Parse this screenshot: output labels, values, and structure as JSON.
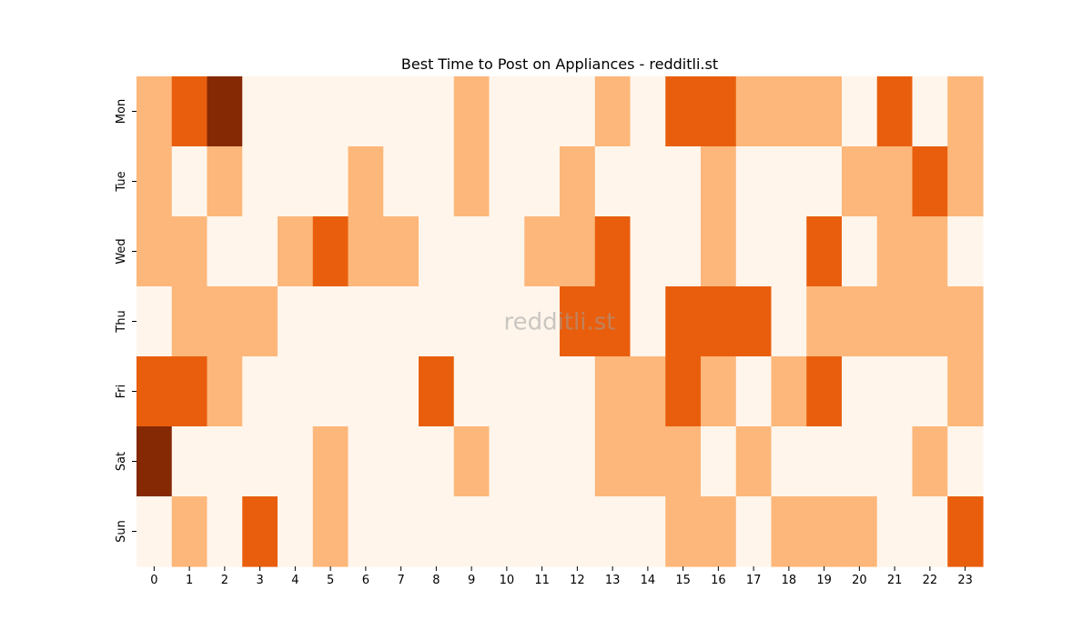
{
  "chart_data": {
    "type": "heatmap",
    "title": "Best Time to Post on Appliances - redditli.st",
    "xlabel": "",
    "ylabel": "",
    "x_categories": [
      "0",
      "1",
      "2",
      "3",
      "4",
      "5",
      "6",
      "7",
      "8",
      "9",
      "10",
      "11",
      "12",
      "13",
      "14",
      "15",
      "16",
      "17",
      "18",
      "19",
      "20",
      "21",
      "22",
      "23"
    ],
    "y_categories": [
      "Mon",
      "Tue",
      "Wed",
      "Thu",
      "Fri",
      "Sat",
      "Sun"
    ],
    "values": [
      [
        1,
        2,
        3,
        0,
        0,
        0,
        0,
        0,
        0,
        1,
        0,
        0,
        0,
        1,
        0,
        2,
        2,
        1,
        1,
        1,
        0,
        2,
        0,
        1
      ],
      [
        1,
        0,
        1,
        0,
        0,
        0,
        1,
        0,
        0,
        1,
        0,
        0,
        1,
        0,
        0,
        0,
        1,
        0,
        0,
        0,
        1,
        1,
        2,
        1
      ],
      [
        1,
        1,
        0,
        0,
        1,
        2,
        1,
        1,
        0,
        0,
        0,
        1,
        1,
        2,
        0,
        0,
        1,
        0,
        0,
        2,
        0,
        1,
        1,
        0
      ],
      [
        0,
        1,
        1,
        1,
        0,
        0,
        0,
        0,
        0,
        0,
        0,
        0,
        2,
        2,
        0,
        2,
        2,
        2,
        0,
        1,
        1,
        1,
        1,
        1
      ],
      [
        2,
        2,
        1,
        0,
        0,
        0,
        0,
        0,
        2,
        0,
        0,
        0,
        0,
        1,
        1,
        2,
        1,
        0,
        1,
        2,
        0,
        0,
        0,
        1
      ],
      [
        3,
        0,
        0,
        0,
        0,
        1,
        0,
        0,
        0,
        1,
        0,
        0,
        0,
        1,
        1,
        1,
        0,
        1,
        0,
        0,
        0,
        0,
        1,
        0
      ],
      [
        0,
        1,
        0,
        2,
        0,
        1,
        0,
        0,
        0,
        0,
        0,
        0,
        0,
        0,
        0,
        1,
        1,
        0,
        1,
        1,
        1,
        0,
        0,
        2
      ]
    ],
    "color_scale": [
      "#fff5eb",
      "#fdb77a",
      "#e95e0d",
      "#842904"
    ],
    "colorbar": false,
    "grid": false,
    "watermark": "redditli.st"
  }
}
